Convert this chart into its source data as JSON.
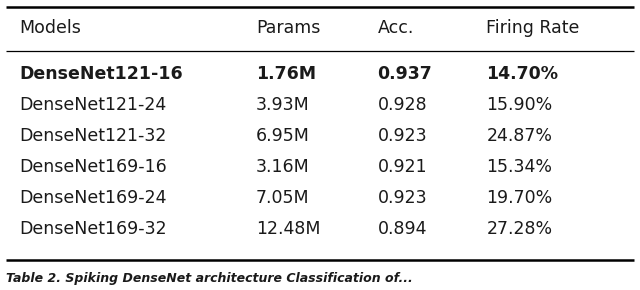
{
  "headers": [
    "Models",
    "Params",
    "Acc.",
    "Firing Rate"
  ],
  "rows": [
    [
      "DenseNet121-16",
      "1.76M",
      "0.937",
      "14.70%"
    ],
    [
      "DenseNet121-24",
      "3.93M",
      "0.928",
      "15.90%"
    ],
    [
      "DenseNet121-32",
      "6.95M",
      "0.923",
      "24.87%"
    ],
    [
      "DenseNet169-16",
      "3.16M",
      "0.921",
      "15.34%"
    ],
    [
      "DenseNet169-24",
      "7.05M",
      "0.923",
      "19.70%"
    ],
    [
      "DenseNet169-32",
      "12.48M",
      "0.894",
      "27.28%"
    ]
  ],
  "bold_row": 0,
  "caption": "Table 2. Spiking DenseNet architecture Classification of...",
  "background_color": "#ffffff",
  "text_color": "#1a1a1a",
  "header_fontsize": 12.5,
  "row_fontsize": 12.5,
  "caption_fontsize": 9.0,
  "fig_width": 6.4,
  "fig_height": 2.9
}
